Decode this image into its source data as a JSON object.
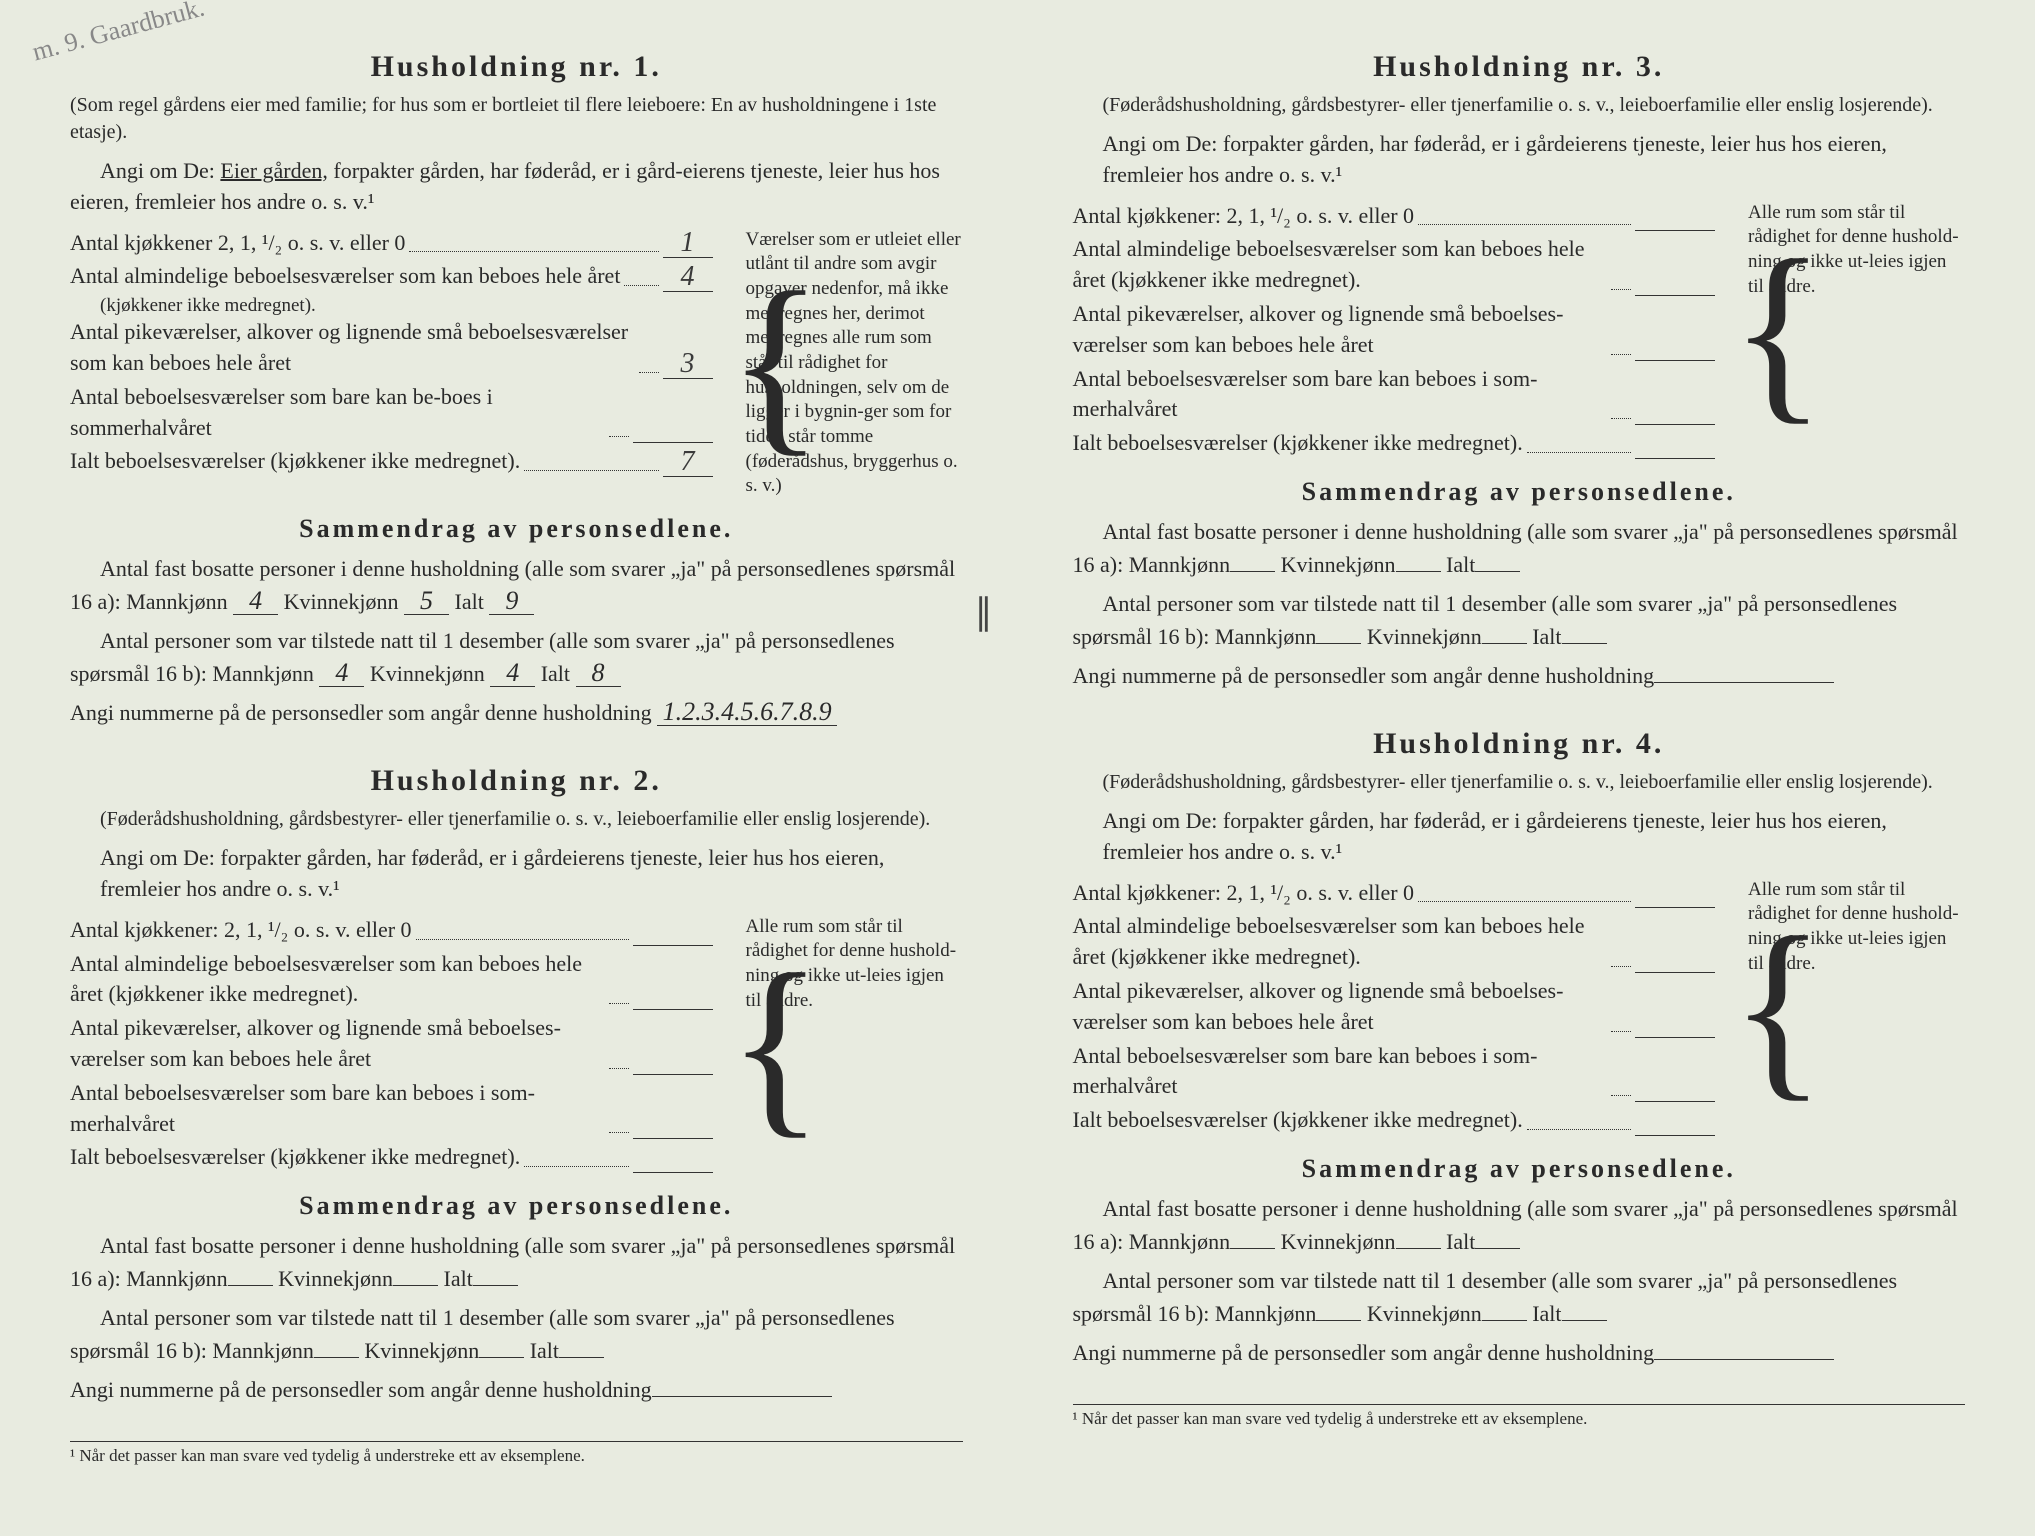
{
  "handwritten_note": "m. 9. Gaardbruk.",
  "footnote": "¹ Når det passer kan man svare ved tydelig å understreke ett av eksemplene.",
  "h1": {
    "title": "Husholdning nr. 1.",
    "subtitle": "(Som regel gårdens eier med familie; for hus som er bortleiet til flere leieboere: En av husholdningene i 1ste etasje).",
    "angi_pre": "Angi om De: ",
    "angi_underlined": "Eier gården,",
    "angi_post": " forpakter gården, har føderåd, er i gård-eierens tjeneste, leier hus hos eieren, fremleier hos andre o. s. v.¹",
    "kjokken_label": "Antal kjøkkener 2, 1, ¹/₂ o. s. v. eller 0",
    "kjokken_val": "1",
    "alm_label": "Antal almindelige beboelsesværelser som kan beboes hele året",
    "alm_note": "(kjøkkener ikke medregnet).",
    "alm_val": "4",
    "pike_label": "Antal pikeværelser, alkover og lignende små beboelsesværelser som kan beboes hele året",
    "pike_val": "3",
    "sommer_label": "Antal beboelsesværelser som bare kan be-boes i sommerhalvåret",
    "sommer_val": "",
    "ialt_label": "Ialt beboelsesværelser (kjøkkener ikke medregnet).",
    "ialt_val": "7",
    "sidebar": "Værelser som er utleiet eller utlånt til andre som avgir opgaver nedenfor, må ikke medregnes her, derimot medregnes alle rum som står til rådighet for husholdningen, selv om de ligger i bygnin-ger som for tiden står tomme (føderådshus, bryggerhus o. s. v.)",
    "summary_title": "Sammendrag av personsedlene.",
    "s16a_pre": "Antal fast bosatte personer i denne husholdning (alle som svarer „ja\" på personsedlenes spørsmål 16 a): Mannkjønn",
    "s16a_m": "4",
    "s16a_k_label": "Kvinnekjønn",
    "s16a_k": "5",
    "s16a_i_label": "Ialt",
    "s16a_i": "9",
    "s16b_pre": "Antal personer som var tilstede natt til 1 desember (alle som svarer „ja\" på personsedlenes spørsmål 16 b): Mannkjønn",
    "s16b_m": "4",
    "s16b_k": "4",
    "s16b_i": "8",
    "nummer_label": "Angi nummerne på de personsedler som angår denne husholdning",
    "nummer_val": "1.2.3.4.5.6.7.8.9"
  },
  "generic_subtitle": "(Føderådshusholdning, gårdsbestyrer- eller tjenerfamilie o. s. v., leieboerfamilie eller enslig losjerende).",
  "generic_angi": "Angi om De:  forpakter gården, har føderåd, er i gårdeierens tjeneste, leier hus hos eieren, fremleier hos andre o. s. v.¹",
  "generic_kjokken": "Antal kjøkkener: 2, 1, ¹/₂ o. s. v. eller 0",
  "generic_alm": "Antal almindelige beboelsesværelser som kan beboes hele året (kjøkkener ikke medregnet).",
  "generic_pike": "Antal pikeværelser, alkover og lignende små beboelses-værelser som kan beboes hele året",
  "generic_sommer": "Antal beboelsesværelser som bare kan beboes i som-merhalvåret",
  "generic_ialt": "Ialt beboelsesværelser (kjøkkener ikke medregnet).",
  "generic_sidebar": "Alle rum som står til rådighet for denne hushold-ning og ikke ut-leies igjen til andre.",
  "generic_s16a": "Antal fast bosatte personer i denne husholdning (alle som svarer „ja\" på personsedlenes spørsmål 16 a): Mannkjønn",
  "generic_s16b": "Antal personer som var tilstede natt til 1 desember (alle som svarer „ja\" på personsedlenes spørsmål 16 b): Mannkjønn",
  "kvinne": "Kvinnekjønn",
  "ialt": "Ialt",
  "nummer_label": "Angi nummerne på de personsedler som angår denne husholdning",
  "h2_title": "Husholdning nr. 2.",
  "h3_title": "Husholdning nr. 3.",
  "h4_title": "Husholdning nr. 4.",
  "summary_title": "Sammendrag av personsedlene."
}
